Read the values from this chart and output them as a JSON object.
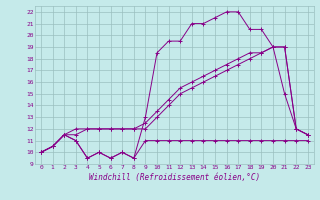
{
  "xlabel": "Windchill (Refroidissement éolien,°C)",
  "xlim": [
    -0.5,
    23.5
  ],
  "ylim": [
    9,
    22.5
  ],
  "xticks": [
    0,
    1,
    2,
    3,
    4,
    5,
    6,
    7,
    8,
    9,
    10,
    11,
    12,
    13,
    14,
    15,
    16,
    17,
    18,
    19,
    20,
    21,
    22,
    23
  ],
  "yticks": [
    9,
    10,
    11,
    12,
    13,
    14,
    15,
    16,
    17,
    18,
    19,
    20,
    21,
    22
  ],
  "bg_color": "#c5eaea",
  "grid_color": "#9bbfbf",
  "line_color": "#880088",
  "s1y": [
    10,
    10.5,
    11.5,
    11,
    9.5,
    10,
    9.5,
    10,
    9.5,
    13,
    18.5,
    19.5,
    19.5,
    21,
    21,
    21.5,
    22,
    22,
    20.5,
    20.5,
    19.0,
    15,
    12,
    11.5
  ],
  "s2y": [
    10,
    10.5,
    11.5,
    11,
    9.5,
    10,
    9.5,
    10,
    9.5,
    11,
    11,
    11,
    11,
    11,
    11,
    11,
    11,
    11,
    11,
    11,
    11,
    11,
    11,
    11
  ],
  "s3y": [
    10,
    10.5,
    11.5,
    11.5,
    12,
    12,
    12,
    12,
    12,
    12,
    13,
    14,
    15,
    15.5,
    16,
    16.5,
    17,
    17.5,
    18,
    18.5,
    19.0,
    19.0,
    12,
    11.5
  ],
  "s4y": [
    10,
    10.5,
    11.5,
    12,
    12,
    12,
    12,
    12,
    12,
    12.5,
    13.5,
    14.5,
    15.5,
    16,
    16.5,
    17,
    17.5,
    18.0,
    18.5,
    18.5,
    19.0,
    19.0,
    12,
    11.5
  ],
  "xlabel_fontsize": 5.5,
  "tick_fontsize": 4.5
}
